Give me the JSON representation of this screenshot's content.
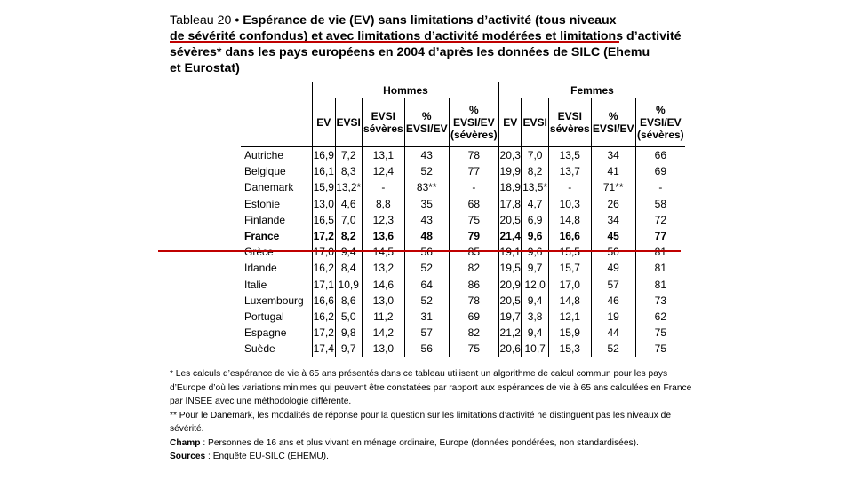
{
  "title": {
    "label": "Tableau 20",
    "sep": " • ",
    "line1": "Espérance de vie (EV) sans limitations d’activité (tous niveaux",
    "line2": "de sévérité confondus) et avec limitations d’activité modérées et limitations d’activité",
    "line3": "sévères* dans les pays européens en 2004 d’après les données de SILC (Ehemu",
    "line4": "et Eurostat)"
  },
  "table": {
    "groups": [
      "Hommes",
      "Femmes"
    ],
    "columns": [
      [
        "EV"
      ],
      [
        "EVSI"
      ],
      [
        "EVSI",
        "sévères"
      ],
      [
        "%",
        "EVSI/EV"
      ],
      [
        "%",
        "EVSI/EV",
        "(sévères)"
      ]
    ],
    "rows": [
      {
        "country": "Autriche",
        "h": [
          "16,9",
          "7,2",
          "13,1",
          "43",
          "78"
        ],
        "f": [
          "20,3",
          "7,0",
          "13,5",
          "34",
          "66"
        ]
      },
      {
        "country": "Belgique",
        "h": [
          "16,1",
          "8,3",
          "12,4",
          "52",
          "77"
        ],
        "f": [
          "19,9",
          "8,2",
          "13,7",
          "41",
          "69"
        ]
      },
      {
        "country": "Danemark",
        "h": [
          "15,9",
          "13,2*",
          "-",
          "83**",
          "-"
        ],
        "f": [
          "18,9",
          "13,5*",
          "-",
          "71**",
          "-"
        ]
      },
      {
        "country": "Estonie",
        "h": [
          "13,0",
          "4,6",
          "8,8",
          "35",
          "68"
        ],
        "f": [
          "17,8",
          "4,7",
          "10,3",
          "26",
          "58"
        ]
      },
      {
        "country": "Finlande",
        "h": [
          "16,5",
          "7,0",
          "12,3",
          "43",
          "75"
        ],
        "f": [
          "20,5",
          "6,9",
          "14,8",
          "34",
          "72"
        ]
      },
      {
        "country": "France",
        "h": [
          "17,2",
          "8,2",
          "13,6",
          "48",
          "79"
        ],
        "f": [
          "21,4",
          "9,6",
          "16,6",
          "45",
          "77"
        ],
        "bold": true
      },
      {
        "country": "Grèce",
        "h": [
          "17,0",
          "9,4",
          "14,5",
          "56",
          "85"
        ],
        "f": [
          "19,1",
          "9,6",
          "15,5",
          "50",
          "81"
        ]
      },
      {
        "country": "Irlande",
        "h": [
          "16,2",
          "8,4",
          "13,2",
          "52",
          "82"
        ],
        "f": [
          "19,5",
          "9,7",
          "15,7",
          "49",
          "81"
        ]
      },
      {
        "country": "Italie",
        "h": [
          "17,1",
          "10,9",
          "14,6",
          "64",
          "86"
        ],
        "f": [
          "20,9",
          "12,0",
          "17,0",
          "57",
          "81"
        ]
      },
      {
        "country": "Luxembourg",
        "h": [
          "16,6",
          "8,6",
          "13,0",
          "52",
          "78"
        ],
        "f": [
          "20,5",
          "9,4",
          "14,8",
          "46",
          "73"
        ]
      },
      {
        "country": "Portugal",
        "h": [
          "16,2",
          "5,0",
          "11,2",
          "31",
          "69"
        ],
        "f": [
          "19,7",
          "3,8",
          "12,1",
          "19",
          "62"
        ]
      },
      {
        "country": "Espagne",
        "h": [
          "17,2",
          "9,8",
          "14,2",
          "57",
          "82"
        ],
        "f": [
          "21,2",
          "9,4",
          "15,9",
          "44",
          "75"
        ]
      },
      {
        "country": "Suède",
        "h": [
          "17,4",
          "9,7",
          "13,0",
          "56",
          "75"
        ],
        "f": [
          "20,6",
          "10,7",
          "15,3",
          "52",
          "75"
        ]
      }
    ]
  },
  "notes": {
    "note1": "* Les calculs d’espérance de vie à 65 ans présentés dans ce tableau utilisent un algorithme de calcul commun pour les pays d’Europe d’où les variations minimes qui peuvent être constatées par rapport aux espérances de vie à 65 ans calculées en France par INSEE avec une méthodologie différente.",
    "note2": "** Pour le Danemark, les modalités de réponse pour la question sur les limitations d’activité ne distinguent pas les niveaux de sévérité.",
    "champ_label": "Champ",
    "champ_text": " : Personnes de 16 ans et plus vivant en ménage ordinaire, Europe (données pondérées, non standardisées).",
    "sources_label": "Sources",
    "sources_text": " : Enquête EU-SILC (EHEMU)."
  },
  "colors": {
    "highlight": "#c00000"
  }
}
